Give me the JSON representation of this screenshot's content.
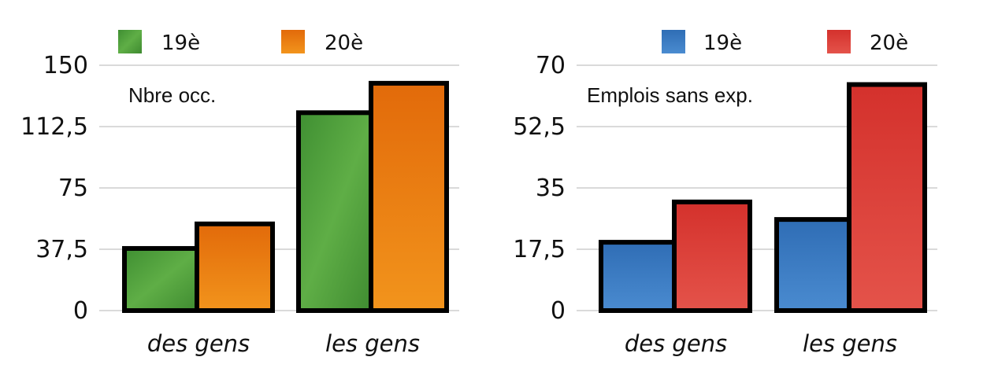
{
  "chart_data": [
    {
      "type": "bar",
      "title": "",
      "annotation": "Nbre occ.",
      "categories": [
        "des gens",
        "les gens"
      ],
      "series": [
        {
          "name": "19è",
          "color": "#4a9c3a",
          "values": [
            38,
            121
          ]
        },
        {
          "name": "20è",
          "color": "#e8780f",
          "values": [
            53,
            139
          ]
        }
      ],
      "yticks": [
        "0",
        "37,5",
        "75",
        "112,5",
        "150"
      ],
      "ylim": [
        0,
        150
      ],
      "grid": true,
      "legend": "top"
    },
    {
      "type": "bar",
      "title": "",
      "annotation": "Emplois sans exp.",
      "categories": [
        "des gens",
        "les gens"
      ],
      "series": [
        {
          "name": "19è",
          "color": "#3a78c0",
          "values": [
            19.5,
            26
          ]
        },
        {
          "name": "20è",
          "color": "#d93a35",
          "values": [
            31,
            64.5
          ]
        }
      ],
      "yticks": [
        "0",
        "17,5",
        "35",
        "52,5",
        "70"
      ],
      "ylim": [
        0,
        70
      ],
      "grid": true,
      "legend": "top"
    }
  ]
}
